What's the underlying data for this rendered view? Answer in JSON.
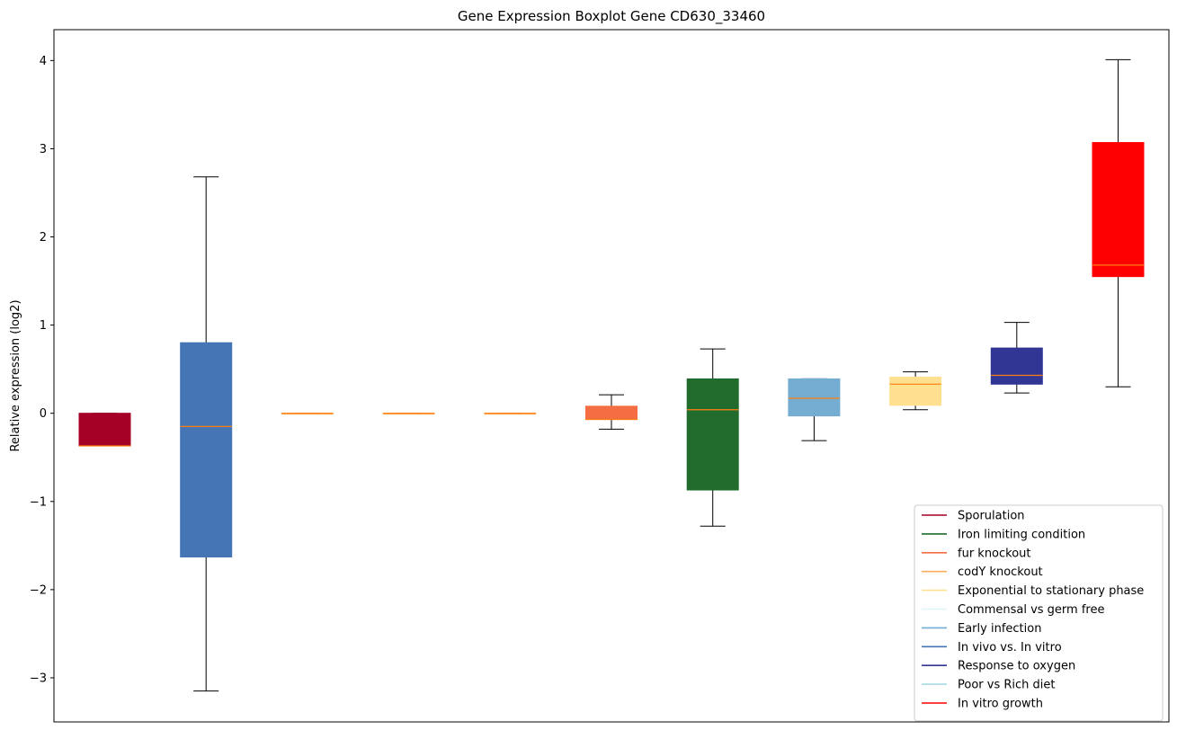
{
  "chart_data": {
    "type": "boxplot",
    "title": "Gene Expression Boxplot Gene CD630_33460",
    "xlabel": "",
    "ylabel": "Relative expression (log2)",
    "ylim": [
      -3.5,
      4.35
    ],
    "yticks": [
      -3,
      -2,
      -1,
      0,
      1,
      2,
      3,
      4
    ],
    "ytick_labels": [
      "−3",
      "−2",
      "−1",
      "0",
      "1",
      "2",
      "3",
      "4"
    ],
    "legend_position": "bottom-right",
    "grid": false,
    "median_color": "#ff7f0e",
    "boxes": [
      {
        "color": "#a50026",
        "whislo": -0.37,
        "q1": -0.37,
        "med": -0.37,
        "q3": 0.0,
        "whishi": 0.0
      },
      {
        "color": "#4575b4",
        "whislo": -3.15,
        "q1": -1.63,
        "med": -0.15,
        "q3": 0.8,
        "whishi": 2.68
      },
      {
        "color": "#fdae61",
        "whislo": 0.0,
        "q1": 0.0,
        "med": 0.0,
        "q3": 0.0,
        "whishi": 0.0
      },
      {
        "color": "#fdae61",
        "whislo": 0.0,
        "q1": 0.0,
        "med": 0.0,
        "q3": 0.0,
        "whishi": 0.0
      },
      {
        "color": "#fdae61",
        "whislo": 0.0,
        "q1": 0.0,
        "med": 0.0,
        "q3": 0.0,
        "whishi": 0.0
      },
      {
        "color": "#f46d43",
        "whislo": -0.18,
        "q1": -0.07,
        "med": -0.07,
        "q3": 0.08,
        "whishi": 0.21
      },
      {
        "color": "#216c2d",
        "whislo": -1.28,
        "q1": -0.87,
        "med": 0.04,
        "q3": 0.39,
        "whishi": 0.73
      },
      {
        "color": "#74add1",
        "whislo": -0.31,
        "q1": -0.03,
        "med": 0.17,
        "q3": 0.39,
        "whishi": 0.39
      },
      {
        "color": "#fee090",
        "whislo": 0.04,
        "q1": 0.09,
        "med": 0.33,
        "q3": 0.41,
        "whishi": 0.47
      },
      {
        "color": "#313695",
        "whislo": 0.23,
        "q1": 0.33,
        "med": 0.43,
        "q3": 0.74,
        "whishi": 1.03
      },
      {
        "color": "#ff0000",
        "whislo": 0.3,
        "q1": 1.55,
        "med": 1.68,
        "q3": 3.07,
        "whishi": 4.01
      }
    ],
    "legend": [
      {
        "label": "Sporulation",
        "color": "#a50026"
      },
      {
        "label": "Iron limiting condition",
        "color": "#216c2d"
      },
      {
        "label": "fur knockout",
        "color": "#f46d43"
      },
      {
        "label": "codY knockout",
        "color": "#fdae61"
      },
      {
        "label": "Exponential to stationary phase",
        "color": "#fee090"
      },
      {
        "label": "Commensal vs germ free",
        "color": "#e0f3f8"
      },
      {
        "label": "Early infection",
        "color": "#74add1"
      },
      {
        "label": "In vivo vs. In vitro",
        "color": "#4575b4"
      },
      {
        "label": "Response to oxygen",
        "color": "#313695"
      },
      {
        "label": "Poor vs Rich diet",
        "color": "#a6d8e3"
      },
      {
        "label": "In vitro growth",
        "color": "#ff0000"
      }
    ]
  }
}
